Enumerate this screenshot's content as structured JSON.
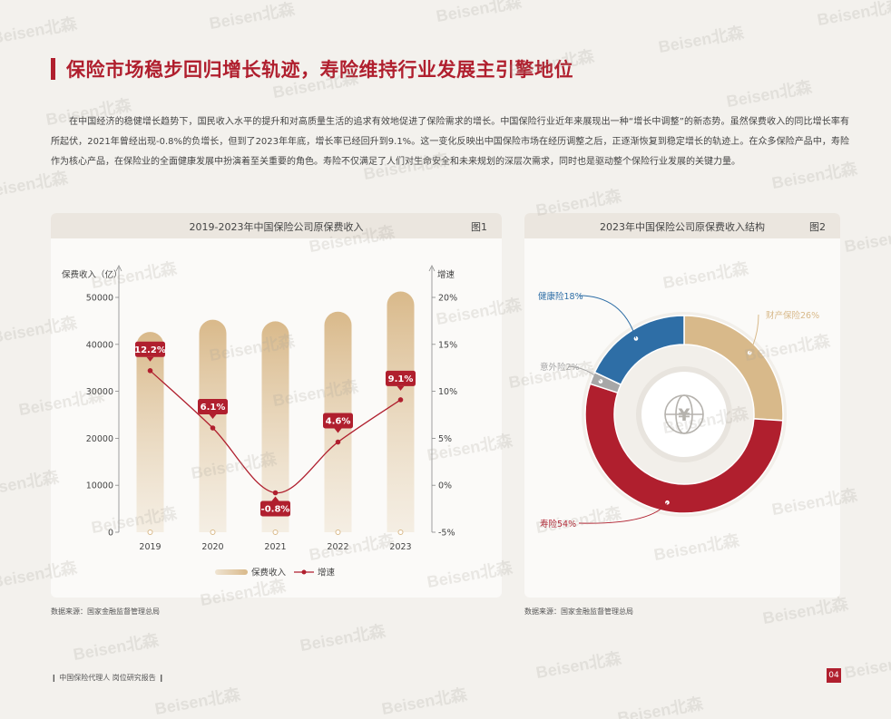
{
  "heading": "保险市场稳步回归增长轨迹，寿险维持行业发展主引擎地位",
  "intro": "在中国经济的稳健增长趋势下，国民收入水平的提升和对高质量生活的追求有效地促进了保险需求的增长。中国保险行业近年来展现出一种“增长中调整”的新态势。虽然保费收入的同比增长率有所起伏，2021年曾经出现-0.8%的负增长，但到了2023年年底，增长率已经回升到9.1%。这一变化反映出中国保险市场在经历调整之后，正逐渐恢复到稳定增长的轨迹上。在众多保险产品中，寿险作为核心产品，在保险业的全面健康发展中扮演着至关重要的角色。寿险不仅满足了人们对生命安全和未来规划的深层次需求，同时也是驱动整个保险行业发展的关键力量。",
  "watermark": "Beisen北森",
  "fig1": {
    "title": "2019-2023年中国保险公司原保费收入",
    "fig_label": "图1",
    "source": "数据来源：国家金融监督管理总局"
  },
  "fig2": {
    "title": "2023年中国保险公司原保费收入结构",
    "fig_label": "图2",
    "source": "数据来源：国家金融监督管理总局"
  },
  "footer": {
    "report_name": "中国保险代理人 岗位研究报告",
    "page": "04"
  },
  "chart_data": [
    {
      "type": "bar",
      "title": "2019-2023年中国保险公司原保费收入",
      "categories": [
        "2019",
        "2020",
        "2021",
        "2022",
        "2023"
      ],
      "ylabel": "保费收入（亿）",
      "y2label": "增速",
      "ylim": [
        0,
        50000
      ],
      "yticks": [
        0,
        10000,
        20000,
        30000,
        40000,
        50000
      ],
      "y2lim": [
        -5,
        20
      ],
      "y2ticks": [
        "-5%",
        "0%",
        "5%",
        "10%",
        "15%",
        "20%"
      ],
      "series": [
        {
          "name": "保费收入",
          "type": "bar",
          "axis": "left",
          "color": "#d8b98a",
          "values": [
            42645,
            45257,
            44900,
            46957,
            51247
          ]
        },
        {
          "name": "增速",
          "type": "line",
          "axis": "right",
          "color": "#b01f2e",
          "values": [
            12.2,
            6.1,
            -0.8,
            4.6,
            9.1
          ],
          "labels": [
            "12.2%",
            "6.1%",
            "-0.8%",
            "4.6%",
            "9.1%"
          ]
        }
      ],
      "legend": "bottom-center",
      "grid": false
    },
    {
      "type": "pie",
      "title": "2023年中国保险公司原保费收入结构",
      "donut": true,
      "slices": [
        {
          "label": "财产保险26%",
          "value": 26,
          "color": "#d8b98a"
        },
        {
          "label": "寿险54%",
          "value": 54,
          "color": "#b01f2e"
        },
        {
          "label": "意外险2%",
          "value": 2,
          "color": "#a7a7a7"
        },
        {
          "label": "健康险18%",
          "value": 18,
          "color": "#2e6ea6"
        }
      ],
      "center_icon": "globe-yuan-icon"
    }
  ]
}
